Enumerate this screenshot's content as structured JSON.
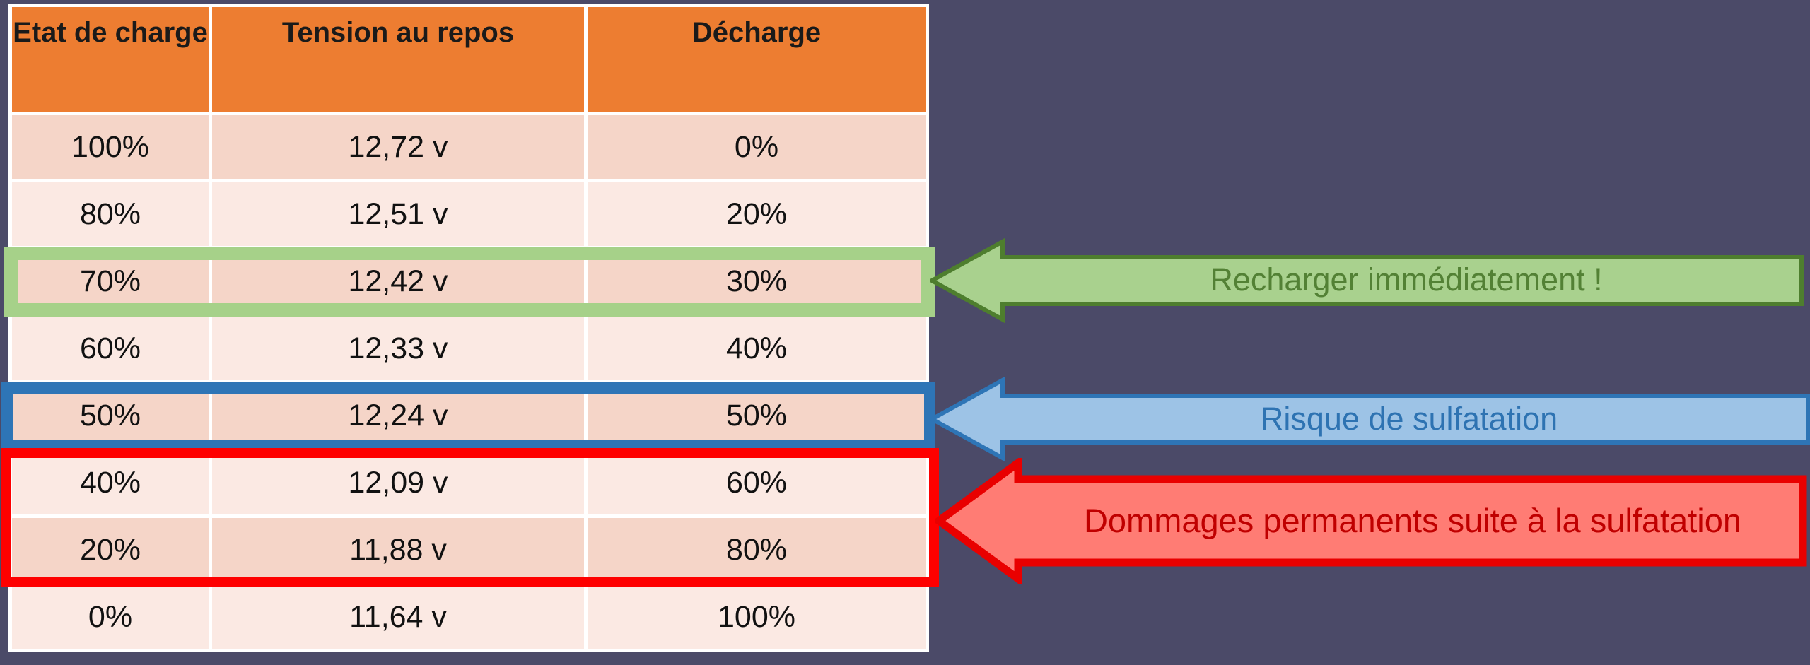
{
  "table": {
    "headers": [
      "Etat de charge",
      "Tension au repos",
      "Décharge"
    ],
    "rows": [
      [
        "100%",
        "12,72 v",
        "0%"
      ],
      [
        "80%",
        "12,51 v",
        "20%"
      ],
      [
        "70%",
        "12,42 v",
        "30%"
      ],
      [
        "60%",
        "12,33 v",
        "40%"
      ],
      [
        "50%",
        "12,24 v",
        "50%"
      ],
      [
        "40%",
        "12,09 v",
        "60%"
      ],
      [
        "20%",
        "11,88 v",
        "80%"
      ],
      [
        "0%",
        "11,64 v",
        "100%"
      ]
    ]
  },
  "annotations": {
    "green": {
      "label": "Recharger immédiatement !",
      "highlighted_row": "70%",
      "fill": "#A9D18E",
      "line": "#4E7E2E",
      "text_color": "#538135"
    },
    "blue": {
      "label": "Risque de sulfatation",
      "highlighted_row": "50%",
      "fill": "#9DC3E6",
      "line": "#2E75B6",
      "text_color": "#2E73B2"
    },
    "red": {
      "label": "Dommages permanents suite à la sulfatation",
      "highlighted_rows": "40% / 20%",
      "fill": "#FF7C74",
      "line": "#E90000",
      "frame": "#FE0000",
      "text_color": "#C00000"
    }
  },
  "colors": {
    "background": "#4B4A68",
    "header_bg": "#ED7D31",
    "row_dark": "#F5D5C8",
    "row_light": "#FBE9E3",
    "grid_lines": "#FFFFFF"
  }
}
